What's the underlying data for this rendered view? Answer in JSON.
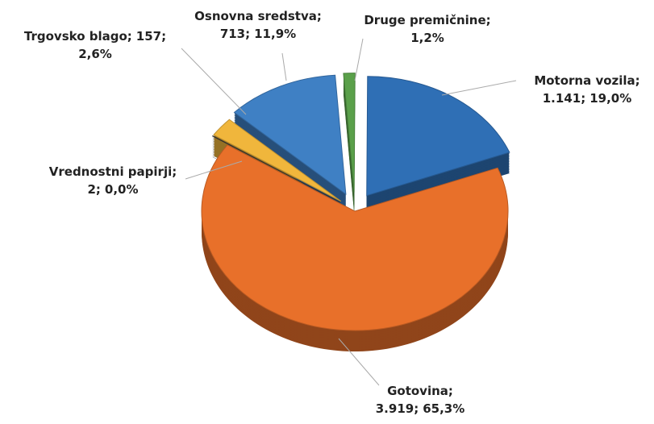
{
  "chart_data": {
    "type": "pie",
    "three_d": true,
    "categories": [
      "Druge premičnine;",
      "Motorna vozila;",
      "Gotovina;",
      "Vrednostni papirji;",
      "Trgovsko blago;",
      "Osnovna sredstva;"
    ],
    "values": [
      72,
      1141,
      3919,
      2,
      157,
      713
    ],
    "value_labels": [
      null,
      "1.141;",
      "3.919;",
      "2;",
      "157;",
      "713;"
    ],
    "percents": [
      1.2,
      19.0,
      65.3,
      0.0,
      2.6,
      11.9
    ],
    "percent_labels": [
      "1,2%",
      "19,0%",
      "65,3%",
      "0,0%",
      "2,6%",
      "11,9%"
    ],
    "colors": [
      "#5aa04a",
      "#2f6fb5",
      "#e8702a",
      "#3a3a3a",
      "#f0b63c",
      "#3f80c4"
    ]
  }
}
